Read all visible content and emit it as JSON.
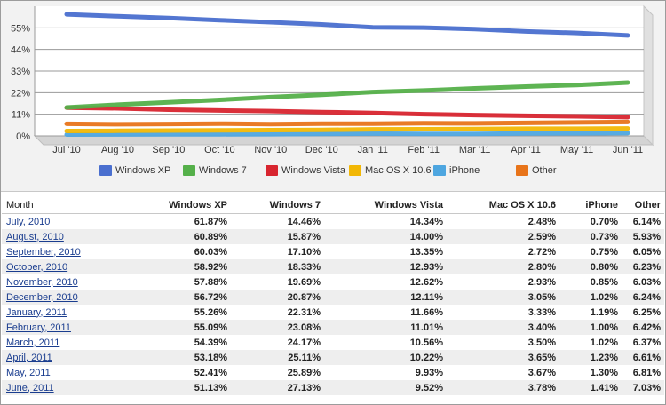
{
  "chart_data": {
    "type": "line",
    "categories": [
      "Jul '10",
      "Aug '10",
      "Sep '10",
      "Oct '10",
      "Nov '10",
      "Dec '10",
      "Jan '11",
      "Feb '11",
      "Mar '11",
      "Apr '11",
      "May '11",
      "Jun '11"
    ],
    "y_ticks": [
      "0%",
      "11%",
      "22%",
      "33%",
      "44%",
      "55%"
    ],
    "y_tick_values": [
      0,
      11,
      22,
      33,
      44,
      55
    ],
    "ylim": [
      0,
      66
    ],
    "grid": true,
    "legend_position": "bottom",
    "series": [
      {
        "name": "Windows XP",
        "color": "#4a6fcf",
        "values": [
          61.87,
          60.89,
          60.03,
          58.92,
          57.88,
          56.72,
          55.26,
          55.09,
          54.39,
          53.18,
          52.41,
          51.13
        ]
      },
      {
        "name": "Windows 7",
        "color": "#55b04a",
        "values": [
          14.46,
          15.87,
          17.1,
          18.33,
          19.69,
          20.87,
          22.31,
          23.08,
          24.17,
          25.11,
          25.89,
          27.13
        ]
      },
      {
        "name": "Windows Vista",
        "color": "#d8252f",
        "values": [
          14.34,
          14.0,
          13.35,
          12.93,
          12.62,
          12.11,
          11.66,
          11.01,
          10.56,
          10.22,
          9.93,
          9.52
        ]
      },
      {
        "name": "Mac OS X 10.6",
        "color": "#f2b705",
        "values": [
          2.48,
          2.59,
          2.72,
          2.8,
          2.93,
          3.05,
          3.33,
          3.4,
          3.5,
          3.65,
          3.67,
          3.78
        ]
      },
      {
        "name": "iPhone",
        "color": "#4ea6e0",
        "values": [
          0.7,
          0.73,
          0.75,
          0.8,
          0.85,
          1.02,
          1.19,
          1.0,
          1.02,
          1.23,
          1.3,
          1.41
        ]
      },
      {
        "name": "Other",
        "color": "#e8741a",
        "values": [
          6.14,
          5.93,
          6.05,
          6.23,
          6.03,
          6.24,
          6.25,
          6.42,
          6.37,
          6.61,
          6.81,
          7.03
        ]
      }
    ]
  },
  "table": {
    "headers": [
      "Month",
      "Windows XP",
      "Windows 7",
      "Windows Vista",
      "Mac OS X 10.6",
      "iPhone",
      "Other"
    ],
    "rows": [
      {
        "month": "July, 2010",
        "values": [
          "61.87%",
          "14.46%",
          "14.34%",
          "2.48%",
          "0.70%",
          "6.14%"
        ]
      },
      {
        "month": "August, 2010",
        "values": [
          "60.89%",
          "15.87%",
          "14.00%",
          "2.59%",
          "0.73%",
          "5.93%"
        ]
      },
      {
        "month": "September, 2010",
        "values": [
          "60.03%",
          "17.10%",
          "13.35%",
          "2.72%",
          "0.75%",
          "6.05%"
        ]
      },
      {
        "month": "October, 2010",
        "values": [
          "58.92%",
          "18.33%",
          "12.93%",
          "2.80%",
          "0.80%",
          "6.23%"
        ]
      },
      {
        "month": "November, 2010",
        "values": [
          "57.88%",
          "19.69%",
          "12.62%",
          "2.93%",
          "0.85%",
          "6.03%"
        ]
      },
      {
        "month": "December, 2010",
        "values": [
          "56.72%",
          "20.87%",
          "12.11%",
          "3.05%",
          "1.02%",
          "6.24%"
        ]
      },
      {
        "month": "January, 2011",
        "values": [
          "55.26%",
          "22.31%",
          "11.66%",
          "3.33%",
          "1.19%",
          "6.25%"
        ]
      },
      {
        "month": "February, 2011",
        "values": [
          "55.09%",
          "23.08%",
          "11.01%",
          "3.40%",
          "1.00%",
          "6.42%"
        ]
      },
      {
        "month": "March, 2011",
        "values": [
          "54.39%",
          "24.17%",
          "10.56%",
          "3.50%",
          "1.02%",
          "6.37%"
        ]
      },
      {
        "month": "April, 2011",
        "values": [
          "53.18%",
          "25.11%",
          "10.22%",
          "3.65%",
          "1.23%",
          "6.61%"
        ]
      },
      {
        "month": "May, 2011",
        "values": [
          "52.41%",
          "25.89%",
          "9.93%",
          "3.67%",
          "1.30%",
          "6.81%"
        ]
      },
      {
        "month": "June, 2011",
        "values": [
          "51.13%",
          "27.13%",
          "9.52%",
          "3.78%",
          "1.41%",
          "7.03%"
        ]
      }
    ]
  }
}
